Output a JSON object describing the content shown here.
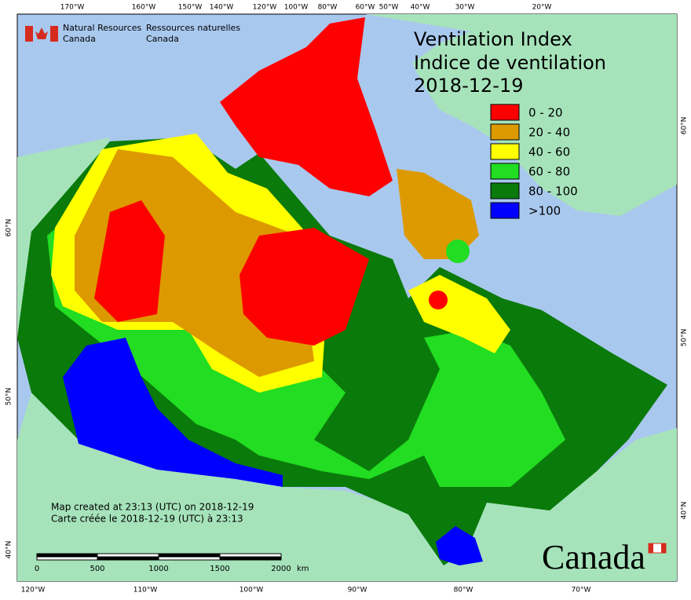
{
  "header": {
    "title_en": "Ventilation Index",
    "title_fr": "Indice de ventilation",
    "date": "2018-12-19"
  },
  "agency": {
    "en": [
      "Natural Resources",
      "Canada"
    ],
    "fr": [
      "Ressources naturelles",
      "Canada"
    ]
  },
  "legend": [
    {
      "label": "0 - 20",
      "color": "#ff0000"
    },
    {
      "label": "20 - 40",
      "color": "#dd9a00"
    },
    {
      "label": "40 - 60",
      "color": "#ffff00"
    },
    {
      "label": "60 - 80",
      "color": "#22dd22"
    },
    {
      "label": "80 - 100",
      "color": "#0a7a0a"
    },
    {
      "label": ">100",
      "color": "#0000ff"
    }
  ],
  "notes": [
    "Map created at 23:13 (UTC) on 2018-12-19",
    "Carte créée le 2018-12-19 (UTC) à 23:13"
  ],
  "scale_bar": {
    "labels": [
      "0",
      "500",
      "1000",
      "1500",
      "2000"
    ],
    "unit": "km"
  },
  "graticule": {
    "top": [
      "170°W",
      "160°W",
      "150°W",
      "140°W",
      "120°W",
      "100°W",
      "80°W",
      "60°W",
      "50°W",
      "40°W",
      "30°W",
      "20°W"
    ],
    "bottom": [
      "120°W",
      "110°W",
      "100°W",
      "90°W",
      "80°W",
      "70°W"
    ],
    "left": [
      "60°N",
      "50°N",
      "40°N"
    ],
    "right": [
      "60°N",
      "50°N",
      "40°N"
    ]
  },
  "wordmark": "Canada"
}
